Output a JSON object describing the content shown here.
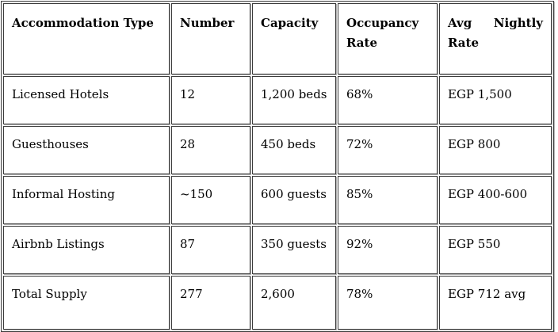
{
  "table": {
    "columns": [
      {
        "label": "Accommodation Type"
      },
      {
        "label": "Number"
      },
      {
        "label": "Capacity"
      },
      {
        "label": "Occupancy Rate"
      },
      {
        "label": "Avg Nightly Rate"
      }
    ],
    "rows": [
      {
        "cells": [
          "Licensed Hotels",
          "12",
          "1,200 beds",
          "68%",
          "EGP 1,500"
        ]
      },
      {
        "cells": [
          "Guesthouses",
          "28",
          "450 beds",
          "72%",
          "EGP 800"
        ]
      },
      {
        "cells": [
          "Informal Hosting",
          "~150",
          "600 guests",
          "85%",
          "EGP 400-600"
        ]
      },
      {
        "cells": [
          "Airbnb Listings",
          "87",
          "350 guests",
          "92%",
          "EGP 550"
        ]
      },
      {
        "cells": [
          "Total Supply",
          "277",
          "2,600",
          "78%",
          "EGP 712 avg"
        ]
      }
    ]
  },
  "colors": {
    "background": "#ffffff",
    "text": "#000000",
    "border_dark": "#3b3b3b",
    "border_shadow": "#b3b3b3"
  }
}
